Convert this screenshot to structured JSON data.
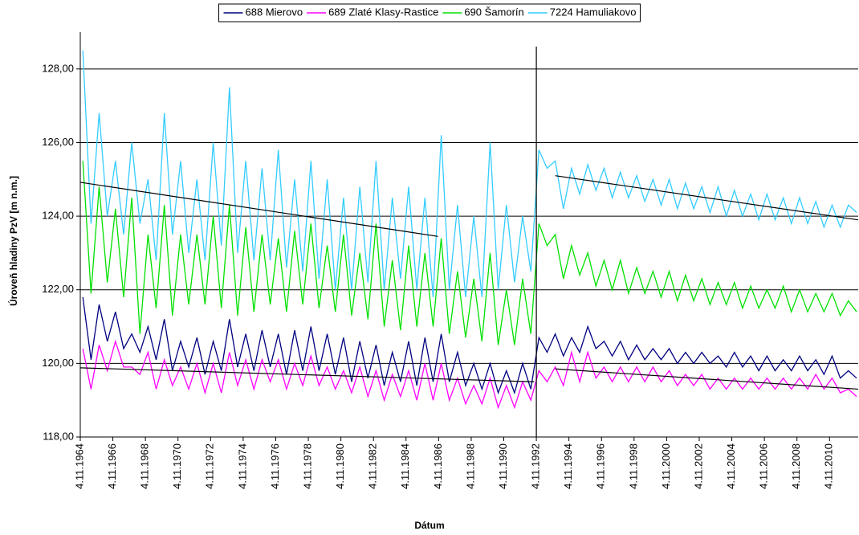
{
  "chart_data": {
    "type": "line",
    "xlabel": "Dátum",
    "ylabel": "Úroveň hladiny PzV [m n.m.]",
    "xlim": [
      1964.84,
      2012.6
    ],
    "xticks": [
      {
        "value": 1964.84,
        "label": "4.11.1964"
      },
      {
        "value": 1966.84,
        "label": "4.11.1966"
      },
      {
        "value": 1968.84,
        "label": "4.11.1968"
      },
      {
        "value": 1970.84,
        "label": "4.11.1970"
      },
      {
        "value": 1972.84,
        "label": "4.11.1972"
      },
      {
        "value": 1974.84,
        "label": "4.11.1974"
      },
      {
        "value": 1976.84,
        "label": "4.11.1976"
      },
      {
        "value": 1978.84,
        "label": "4.11.1978"
      },
      {
        "value": 1980.84,
        "label": "4.11.1980"
      },
      {
        "value": 1982.84,
        "label": "4.11.1982"
      },
      {
        "value": 1984.84,
        "label": "4.11.1984"
      },
      {
        "value": 1986.84,
        "label": "4.11.1986"
      },
      {
        "value": 1988.84,
        "label": "4.11.1988"
      },
      {
        "value": 1990.84,
        "label": "4.11.1990"
      },
      {
        "value": 1992.84,
        "label": "4.11.1992"
      },
      {
        "value": 1994.84,
        "label": "4.11.1994"
      },
      {
        "value": 1996.84,
        "label": "4.11.1996"
      },
      {
        "value": 1998.84,
        "label": "4.11.1998"
      },
      {
        "value": 2000.84,
        "label": "4.11.2000"
      },
      {
        "value": 2002.84,
        "label": "4.11.2002"
      },
      {
        "value": 2004.84,
        "label": "4.11.2004"
      },
      {
        "value": 2006.84,
        "label": "4.11.2006"
      },
      {
        "value": 2008.84,
        "label": "4.11.2008"
      },
      {
        "value": 2010.84,
        "label": "4.11.2010"
      }
    ],
    "ylim": [
      118,
      129
    ],
    "yticks": [
      {
        "value": 118,
        "label": "118,00"
      },
      {
        "value": 120,
        "label": "120,00"
      },
      {
        "value": 122,
        "label": "122,00"
      },
      {
        "value": 124,
        "label": "124,00"
      },
      {
        "value": 126,
        "label": "126,00"
      },
      {
        "value": 128,
        "label": "128,00"
      }
    ],
    "grid": true,
    "legend": "top",
    "vlines": [
      1992.84
    ],
    "x": [
      1965,
      1965.5,
      1966,
      1966.5,
      1967,
      1967.5,
      1968,
      1968.5,
      1969,
      1969.5,
      1970,
      1970.5,
      1971,
      1971.5,
      1972,
      1972.5,
      1973,
      1973.5,
      1974,
      1974.5,
      1975,
      1975.5,
      1976,
      1976.5,
      1977,
      1977.5,
      1978,
      1978.5,
      1979,
      1979.5,
      1980,
      1980.5,
      1981,
      1981.5,
      1982,
      1982.5,
      1983,
      1983.5,
      1984,
      1984.5,
      1985,
      1985.5,
      1986,
      1986.5,
      1987,
      1987.5,
      1988,
      1988.5,
      1989,
      1989.5,
      1990,
      1990.5,
      1991,
      1991.5,
      1992,
      1992.5,
      1993,
      1993.5,
      1994,
      1994.5,
      1995,
      1995.5,
      1996,
      1996.5,
      1997,
      1997.5,
      1998,
      1998.5,
      1999,
      1999.5,
      2000,
      2000.5,
      2001,
      2001.5,
      2002,
      2002.5,
      2003,
      2003.5,
      2004,
      2004.5,
      2005,
      2005.5,
      2006,
      2006.5,
      2007,
      2007.5,
      2008,
      2008.5,
      2009,
      2009.5,
      2010,
      2010.5,
      2011,
      2011.5,
      2012,
      2012.5
    ],
    "series": [
      {
        "name": "688 Mierovo",
        "color": "#000080",
        "values": [
          121.8,
          120.1,
          121.6,
          120.6,
          121.4,
          120.4,
          120.8,
          120.3,
          121,
          120.1,
          121.2,
          119.8,
          120.6,
          119.9,
          120.7,
          119.7,
          120.6,
          119.8,
          121.2,
          119.9,
          120.8,
          119.8,
          120.9,
          119.9,
          120.8,
          119.7,
          120.9,
          119.8,
          121,
          119.8,
          120.8,
          119.7,
          120.7,
          119.5,
          120.6,
          119.6,
          120.5,
          119.4,
          120.3,
          119.5,
          120.6,
          119.4,
          120.7,
          119.5,
          120.8,
          119.5,
          120.3,
          119.4,
          120,
          119.3,
          120,
          119.2,
          119.8,
          119.2,
          120,
          119.3,
          120.7,
          120.3,
          120.8,
          120.2,
          120.7,
          120.3,
          121,
          120.4,
          120.6,
          120.2,
          120.6,
          120.1,
          120.5,
          120.1,
          120.4,
          120.1,
          120.4,
          120,
          120.3,
          120,
          120.3,
          120,
          120.2,
          119.9,
          120.3,
          119.9,
          120.2,
          119.8,
          120.2,
          119.8,
          120.1,
          119.8,
          120.2,
          119.8,
          120.1,
          119.7,
          120.2,
          119.6,
          119.8,
          119.6
        ]
      },
      {
        "name": "689 Zlaté Klasy-Rastice",
        "color": "#ff00ff",
        "values": [
          120.4,
          119.3,
          120.5,
          119.8,
          120.6,
          119.9,
          119.9,
          119.7,
          120.3,
          119.3,
          120.1,
          119.4,
          119.9,
          119.3,
          120,
          119.2,
          120,
          119.2,
          120.3,
          119.4,
          120.1,
          119.3,
          120.1,
          119.5,
          120.1,
          119.3,
          120,
          119.4,
          120.2,
          119.4,
          119.9,
          119.3,
          119.8,
          119.2,
          119.9,
          119.1,
          119.8,
          119,
          119.7,
          119.1,
          119.8,
          119,
          120,
          119,
          120,
          119,
          119.6,
          118.9,
          119.4,
          118.9,
          119.6,
          118.8,
          119.4,
          118.8,
          119.5,
          119,
          119.8,
          119.5,
          119.9,
          119.4,
          120.3,
          119.5,
          120.3,
          119.6,
          119.9,
          119.5,
          119.9,
          119.5,
          119.9,
          119.5,
          119.9,
          119.5,
          119.8,
          119.4,
          119.7,
          119.4,
          119.7,
          119.3,
          119.6,
          119.3,
          119.6,
          119.3,
          119.6,
          119.3,
          119.6,
          119.3,
          119.6,
          119.3,
          119.6,
          119.3,
          119.7,
          119.3,
          119.6,
          119.2,
          119.3,
          119.1
        ]
      },
      {
        "name": "690 Šamorín",
        "color": "#00e000",
        "values": [
          125.5,
          121.9,
          124.8,
          122.2,
          124.2,
          121.8,
          124.5,
          120.8,
          123.5,
          121.5,
          124.3,
          121.3,
          123.5,
          121.6,
          123.5,
          121.6,
          124,
          121.5,
          124.3,
          121.3,
          123.7,
          121.4,
          123.5,
          121.6,
          123.4,
          121.4,
          123.6,
          121.6,
          123.8,
          121.5,
          123.2,
          121.4,
          123.5,
          121.3,
          123,
          121.2,
          123.8,
          121,
          122.8,
          120.9,
          123.2,
          121,
          123,
          121,
          123.4,
          120.8,
          122.5,
          120.7,
          122.3,
          120.6,
          123,
          120.5,
          122,
          120.5,
          122.3,
          120.8,
          123.8,
          123.2,
          123.5,
          122.3,
          123.2,
          122.4,
          123,
          122.1,
          122.8,
          122,
          122.8,
          121.9,
          122.6,
          121.9,
          122.5,
          121.8,
          122.5,
          121.7,
          122.4,
          121.7,
          122.3,
          121.6,
          122.2,
          121.6,
          122.2,
          121.5,
          122.1,
          121.5,
          122,
          121.5,
          122.1,
          121.4,
          122,
          121.4,
          121.9,
          121.4,
          121.9,
          121.3,
          121.7,
          121.4
        ]
      },
      {
        "name": "7224 Hamuliakovo",
        "color": "#33ccff",
        "values": [
          128.5,
          123.8,
          126.8,
          124,
          125.5,
          123.5,
          126,
          123.8,
          125,
          122.8,
          126.8,
          123.5,
          125.5,
          123,
          125,
          122.8,
          126,
          123.2,
          127.5,
          123,
          125.5,
          122.8,
          125.3,
          122.8,
          125.8,
          122.6,
          125,
          122.5,
          125.5,
          122.3,
          125,
          122,
          124.5,
          122,
          124.8,
          122.2,
          125.5,
          122,
          124.5,
          122.3,
          124.8,
          122,
          124.5,
          121.8,
          126.2,
          122,
          124.3,
          121.8,
          124,
          121.8,
          126,
          122,
          124.3,
          122.2,
          124,
          122.5,
          125.8,
          125.3,
          125.5,
          124.2,
          125.3,
          124.6,
          125.4,
          124.7,
          125.3,
          124.5,
          125.2,
          124.5,
          125.1,
          124.4,
          125,
          124.3,
          125,
          124.2,
          124.9,
          124.2,
          124.8,
          124.1,
          124.8,
          124,
          124.7,
          124,
          124.6,
          123.9,
          124.6,
          123.9,
          124.5,
          123.8,
          124.5,
          123.8,
          124.4,
          123.7,
          124.3,
          123.7,
          124.3,
          124.1
        ]
      }
    ],
    "trendlines": [
      {
        "color": "#000000",
        "x": [
          1964.84,
          1986.8
        ],
        "values": [
          124.92,
          123.45
        ]
      },
      {
        "color": "#000000",
        "x": [
          1994,
          2012.6
        ],
        "values": [
          125.1,
          123.9
        ]
      },
      {
        "color": "#000000",
        "x": [
          1964.84,
          1992.7
        ],
        "values": [
          119.88,
          119.5
        ]
      },
      {
        "color": "#000000",
        "x": [
          1994,
          2012.6
        ],
        "values": [
          119.85,
          119.3
        ]
      }
    ]
  }
}
